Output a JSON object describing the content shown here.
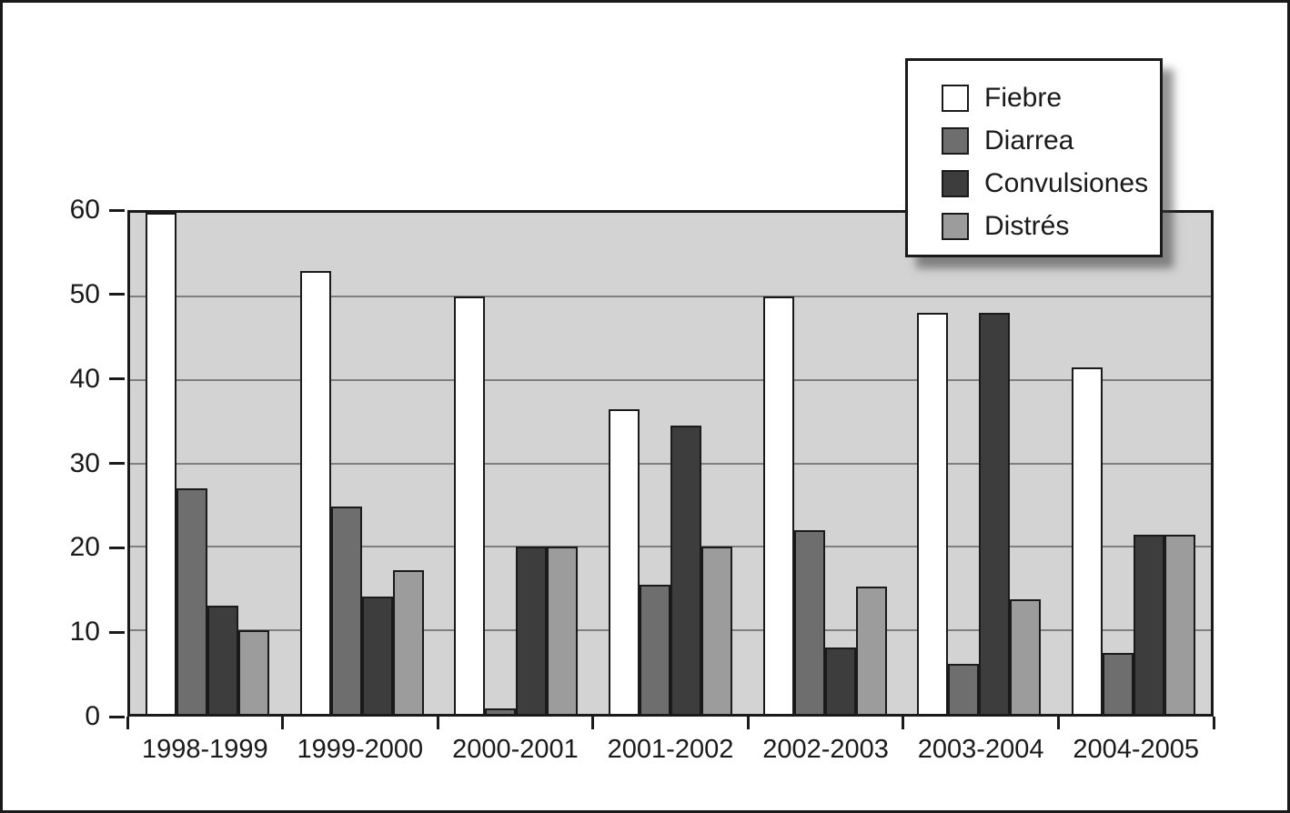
{
  "chart_data": {
    "type": "bar",
    "title": "",
    "xlabel": "",
    "ylabel": "",
    "categories": [
      "1998-1999",
      "1999-2000",
      "2000-2001",
      "2001-2002",
      "2002-2003",
      "2003-2004",
      "2004-2005"
    ],
    "series": [
      {
        "name": "Fiebre",
        "color": "#ffffff",
        "values": [
          60,
          53,
          50,
          36.5,
          50,
          48,
          41.5
        ]
      },
      {
        "name": "Diarrea",
        "color": "#6e6e6e",
        "values": [
          27,
          24.8,
          0.7,
          15.5,
          22,
          6,
          7.3
        ]
      },
      {
        "name": "Convulsiones",
        "color": "#3d3d3d",
        "values": [
          13,
          14,
          20,
          34.5,
          8,
          48,
          21.5
        ]
      },
      {
        "name": "Distrés",
        "color": "#9c9c9c",
        "values": [
          10,
          17.2,
          20,
          20,
          15.3,
          13.7,
          21.5
        ]
      }
    ],
    "ylim": [
      0,
      60
    ],
    "yticks": [
      0,
      10,
      20,
      30,
      40,
      50,
      60
    ],
    "grid": true,
    "legend_position": "top-right",
    "plot_background": "#d3d3d3",
    "gridline_color": "#7f7f7f",
    "bar_border_color": "#1a1a1a"
  }
}
